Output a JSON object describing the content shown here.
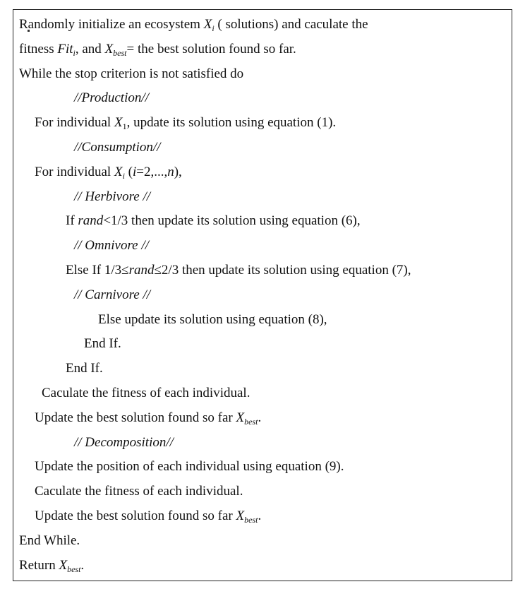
{
  "lines": [
    {
      "segs": [
        {
          "t": "Randomly initialize an ecosystem "
        },
        {
          "t": "X",
          "i": true
        },
        {
          "t": "i",
          "i": true,
          "sub": true
        },
        {
          "t": " ( solutions) and caculate the"
        }
      ]
    },
    {
      "segs": [
        {
          "t": "fitness "
        },
        {
          "t": "Fit",
          "i": true
        },
        {
          "t": "i",
          "i": true,
          "sub": true
        },
        {
          "t": ", and "
        },
        {
          "t": "X",
          "i": true
        },
        {
          "t": "best",
          "i": true,
          "sub": true
        },
        {
          "t": "= the best solution  found so far."
        }
      ]
    },
    {
      "segs": [
        {
          "t": "While the stop  criterion is not satisfied do"
        }
      ]
    },
    {
      "segs": [
        {
          "t": "//Production//",
          "i": true
        }
      ]
    },
    {
      "segs": [
        {
          "t": "For individual "
        },
        {
          "t": "X",
          "i": true
        },
        {
          "t": "1",
          "sub": true
        },
        {
          "t": ", update its solution using equation (1)."
        }
      ]
    },
    {
      "segs": [
        {
          "t": "//Consumption//",
          "i": true
        }
      ]
    },
    {
      "segs": [
        {
          "t": "For individual "
        },
        {
          "t": "X",
          "i": true
        },
        {
          "t": "i",
          "i": true,
          "sub": true
        },
        {
          "t": " ("
        },
        {
          "t": "i",
          "i": true
        },
        {
          "t": "=2,...,"
        },
        {
          "t": "n",
          "i": true
        },
        {
          "t": "),"
        }
      ]
    },
    {
      "segs": [
        {
          "t": "// Herbivore //",
          "i": true
        }
      ]
    },
    {
      "segs": [
        {
          "t": "If "
        },
        {
          "t": "rand",
          "i": true
        },
        {
          "t": "<1/3 then update its solution using equation (6),"
        }
      ]
    },
    {
      "segs": [
        {
          "t": "// Omnivore //",
          "i": true
        }
      ]
    },
    {
      "segs": [
        {
          "t": "Else If   1/3≤"
        },
        {
          "t": "rand",
          "i": true
        },
        {
          "t": "≤2/3 then update its solution using equation (7),"
        }
      ]
    },
    {
      "segs": [
        {
          "t": "// Carnivore //",
          "i": true
        }
      ]
    },
    {
      "segs": [
        {
          "t": "Else update  its solution using equation (8),"
        }
      ]
    },
    {
      "segs": [
        {
          "t": "End If."
        }
      ]
    },
    {
      "segs": [
        {
          "t": "End If."
        }
      ]
    },
    {
      "segs": [
        {
          "t": "Caculate the fitness  of each individual."
        }
      ]
    },
    {
      "segs": [
        {
          "t": "Update the best solution  found so far "
        },
        {
          "t": "X",
          "i": true
        },
        {
          "t": "best",
          "i": true,
          "sub": true
        },
        {
          "t": "."
        }
      ]
    },
    {
      "segs": [
        {
          "t": "// Decomposition//",
          "i": true
        }
      ]
    },
    {
      "segs": [
        {
          "t": "Update the position of each individual using equation  (9)."
        }
      ]
    },
    {
      "segs": [
        {
          "t": "Caculate the fitness  of each individual."
        }
      ]
    },
    {
      "segs": [
        {
          "t": "Update the best solution  found so far "
        },
        {
          "t": "X",
          "i": true
        },
        {
          "t": "best",
          "i": true,
          "sub": true
        },
        {
          "t": "."
        }
      ]
    },
    {
      "segs": [
        {
          "t": "End While."
        }
      ]
    },
    {
      "segs": [
        {
          "t": "Return "
        },
        {
          "t": "X",
          "i": true
        },
        {
          "t": "best",
          "i": true,
          "sub": true
        },
        {
          "t": "."
        }
      ]
    }
  ]
}
